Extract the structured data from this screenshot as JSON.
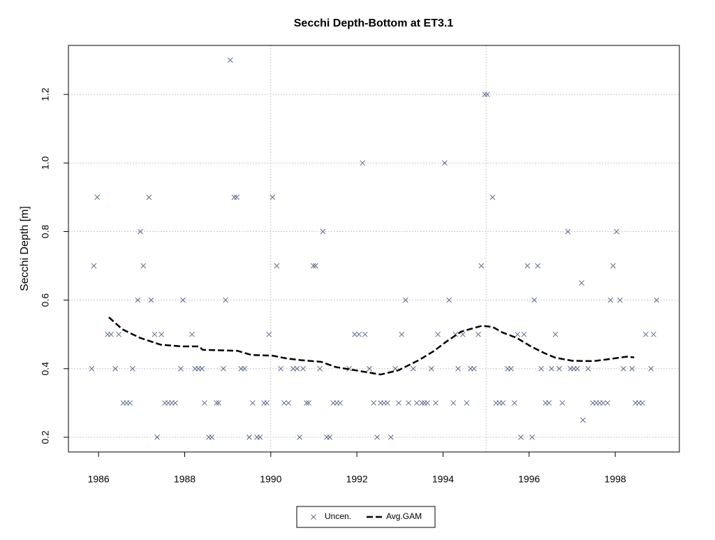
{
  "chart_data": {
    "type": "scatter",
    "title": "Secchi Depth-Bottom at ET3.1",
    "ylabel": "Secchi Depth [m]",
    "xlim": [
      1985.3,
      1999.49
    ],
    "ylim": [
      0.157,
      1.343
    ],
    "xticks": [
      1986,
      1988,
      1990,
      1992,
      1994,
      1996,
      1998
    ],
    "yticks": [
      0.2,
      0.4,
      0.6,
      0.8,
      {
        "value": 1,
        "label": "1.0"
      },
      1.2
    ],
    "xgrid": [
      1990,
      1995
    ],
    "grid": true,
    "legend": "bottom",
    "series": [
      {
        "name": "Uncen.",
        "color": "#5b6b88",
        "mode": "markers",
        "x": [
          1985.84,
          1985.89,
          1985.97,
          1986.21,
          1986.29,
          1986.39,
          1986.47,
          1986.57,
          1986.65,
          1986.73,
          1986.79,
          1986.91,
          1986.97,
          1987.04,
          1987.17,
          1987.22,
          1987.3,
          1987.36,
          1987.46,
          1987.54,
          1987.62,
          1987.7,
          1987.78,
          1987.91,
          1987.96,
          1988.17,
          1988.24,
          1988.32,
          1988.4,
          1988.46,
          1988.56,
          1988.63,
          1988.74,
          1988.79,
          1988.9,
          1988.95,
          1989.06,
          1989.15,
          1989.21,
          1989.31,
          1989.39,
          1989.5,
          1989.58,
          1989.68,
          1989.75,
          1989.84,
          1989.91,
          1989.96,
          1990.04,
          1990.14,
          1990.23,
          1990.31,
          1990.41,
          1990.52,
          1990.61,
          1990.67,
          1990.75,
          1990.83,
          1990.88,
          1990.99,
          1991.04,
          1991.14,
          1991.21,
          1991.3,
          1991.37,
          1991.45,
          1991.53,
          1991.61,
          1991.82,
          1991.95,
          1992.05,
          1992.13,
          1992.19,
          1992.29,
          1992.39,
          1992.47,
          1992.55,
          1992.63,
          1992.71,
          1992.79,
          1992.89,
          1992.97,
          1993.04,
          1993.13,
          1993.2,
          1993.31,
          1993.39,
          1993.51,
          1993.57,
          1993.64,
          1993.73,
          1993.83,
          1993.88,
          1994.04,
          1994.14,
          1994.24,
          1994.29,
          1994.35,
          1994.46,
          1994.55,
          1994.64,
          1994.72,
          1994.82,
          1994.89,
          1994.97,
          1995.03,
          1995.15,
          1995.23,
          1995.31,
          1995.39,
          1995.5,
          1995.58,
          1995.66,
          1995.73,
          1995.81,
          1995.88,
          1995.96,
          1996.07,
          1996.12,
          1996.2,
          1996.28,
          1996.38,
          1996.46,
          1996.52,
          1996.61,
          1996.7,
          1996.77,
          1996.9,
          1996.96,
          1997.04,
          1997.12,
          1997.22,
          1997.25,
          1997.37,
          1997.48,
          1997.56,
          1997.64,
          1997.72,
          1997.82,
          1997.89,
          1997.95,
          1998.03,
          1998.11,
          1998.19,
          1998.39,
          1998.47,
          1998.55,
          1998.63,
          1998.71,
          1998.83,
          1998.89,
          1998.96
        ],
        "values": [
          0.4,
          0.7,
          0.9,
          0.5,
          0.5,
          0.4,
          0.5,
          0.3,
          0.3,
          0.3,
          0.4,
          0.6,
          0.8,
          0.7,
          0.9,
          0.6,
          0.5,
          0.2,
          0.5,
          0.3,
          0.3,
          0.3,
          0.3,
          0.4,
          0.6,
          0.5,
          0.4,
          0.4,
          0.4,
          0.3,
          0.2,
          0.2,
          0.3,
          0.3,
          0.4,
          0.6,
          1.3,
          0.9,
          0.9,
          0.4,
          0.4,
          0.2,
          0.3,
          0.2,
          0.2,
          0.3,
          0.3,
          0.5,
          0.9,
          0.7,
          0.4,
          0.3,
          0.3,
          0.4,
          0.4,
          0.2,
          0.4,
          0.3,
          0.3,
          0.7,
          0.7,
          0.4,
          0.8,
          0.2,
          0.2,
          0.3,
          0.3,
          0.3,
          0.4,
          0.5,
          0.5,
          1.0,
          0.5,
          0.4,
          0.3,
          0.2,
          0.3,
          0.3,
          0.3,
          0.2,
          0.4,
          0.3,
          0.5,
          0.6,
          0.3,
          0.4,
          0.3,
          0.3,
          0.3,
          0.3,
          0.4,
          0.3,
          0.5,
          1.0,
          0.6,
          0.3,
          0.5,
          0.4,
          0.5,
          0.3,
          0.4,
          0.4,
          0.5,
          0.7,
          1.2,
          1.2,
          0.9,
          0.3,
          0.3,
          0.3,
          0.4,
          0.4,
          0.3,
          0.5,
          0.2,
          0.5,
          0.7,
          0.2,
          0.6,
          0.7,
          0.4,
          0.3,
          0.3,
          0.4,
          0.5,
          0.4,
          0.3,
          0.8,
          0.4,
          0.4,
          0.4,
          0.65,
          0.25,
          0.4,
          0.3,
          0.3,
          0.3,
          0.3,
          0.3,
          0.6,
          0.7,
          0.8,
          0.6,
          0.4,
          0.4,
          0.3,
          0.3,
          0.3,
          0.5,
          0.4,
          0.5,
          0.6
        ]
      },
      {
        "name": "Avg.GAM",
        "color": "#000000",
        "mode": "dashed-line",
        "x": [
          1986.24,
          1986.55,
          1986.96,
          1987.44,
          1987.93,
          1988.33,
          1988.42,
          1989.23,
          1989.55,
          1990.04,
          1990.36,
          1990.69,
          1991.17,
          1991.5,
          1991.98,
          1992.55,
          1992.96,
          1993.44,
          1993.77,
          1994.09,
          1994.42,
          1994.9,
          1995.15,
          1995.39,
          1995.71,
          1996.04,
          1996.36,
          1996.61,
          1997.01,
          1997.5,
          1997.98,
          1998.26,
          1998.44
        ],
        "values": [
          0.55,
          0.515,
          0.49,
          0.47,
          0.465,
          0.465,
          0.455,
          0.452,
          0.44,
          0.438,
          0.43,
          0.425,
          0.42,
          0.405,
          0.395,
          0.383,
          0.395,
          0.425,
          0.45,
          0.48,
          0.508,
          0.525,
          0.522,
          0.505,
          0.49,
          0.465,
          0.445,
          0.432,
          0.423,
          0.422,
          0.43,
          0.435,
          0.433
        ]
      }
    ]
  }
}
